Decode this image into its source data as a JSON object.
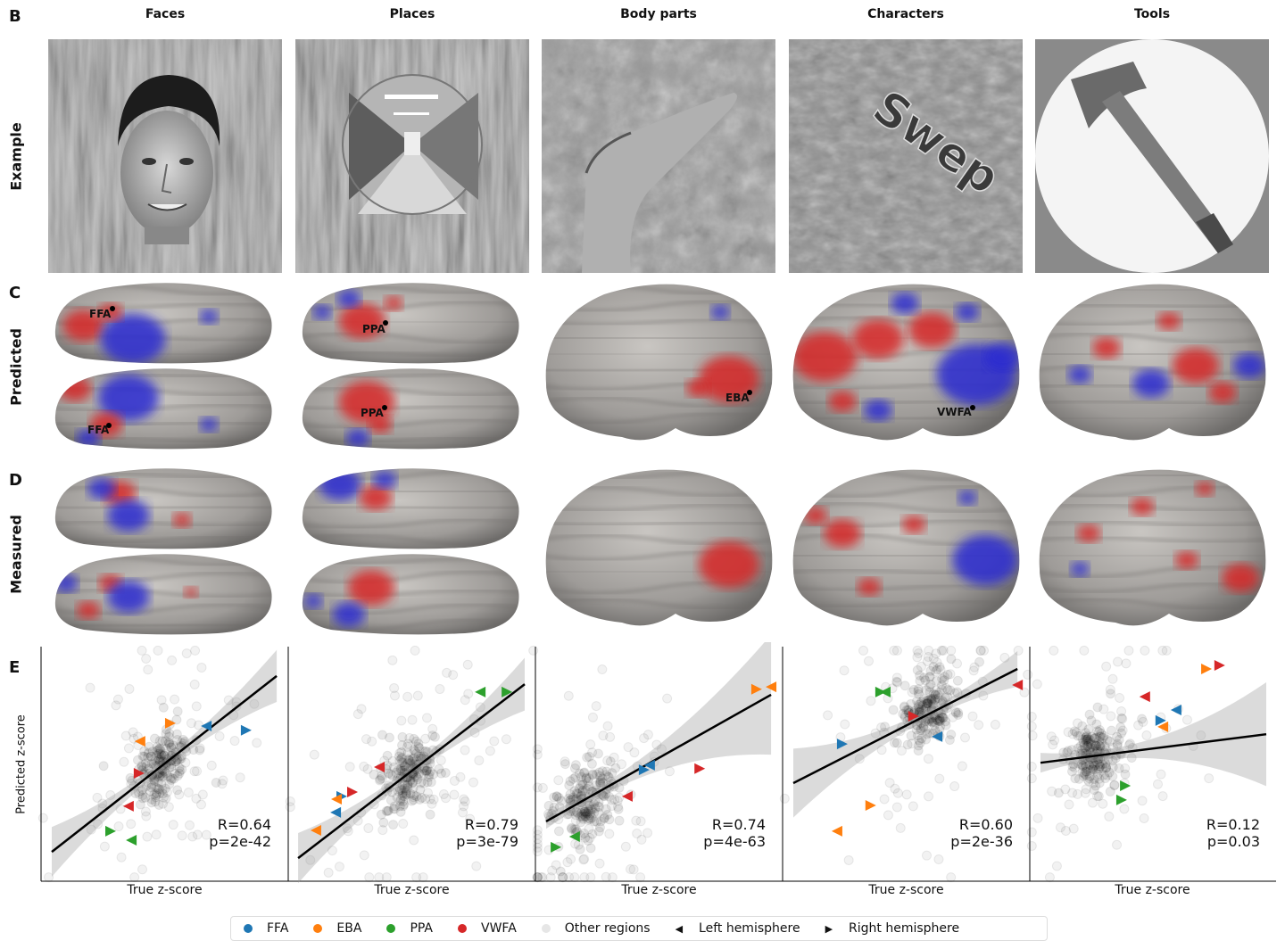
{
  "panels": {
    "B": "B",
    "C": "C",
    "D": "D",
    "E": "E"
  },
  "columns": [
    "Faces",
    "Places",
    "Body parts",
    "Characters",
    "Tools"
  ],
  "row_labels": {
    "example": "Example",
    "predicted": "Predicted",
    "measured": "Measured"
  },
  "example_image_text": {
    "characters": "Swep"
  },
  "roi_labels": {
    "faces": [
      "FFA",
      "FFA"
    ],
    "places": [
      "PPA",
      "PPA"
    ],
    "body_parts": [
      "EBA"
    ],
    "characters": [
      "VWFA"
    ]
  },
  "colors": {
    "FFA": "#1f77b4",
    "EBA": "#ff7f0e",
    "PPA": "#2ca02c",
    "VWFA": "#d62728",
    "other": "#bbbbbb",
    "positive": "#d62728",
    "negative": "#2a2ad0"
  },
  "legend": {
    "items": [
      {
        "label": "FFA",
        "marker": "circle",
        "color": "#1f77b4"
      },
      {
        "label": "EBA",
        "marker": "circle",
        "color": "#ff7f0e"
      },
      {
        "label": "PPA",
        "marker": "circle",
        "color": "#2ca02c"
      },
      {
        "label": "VWFA",
        "marker": "circle",
        "color": "#d62728"
      },
      {
        "label": "Other regions",
        "marker": "circle",
        "color": "#e6e6e6"
      },
      {
        "label": "Left hemisphere",
        "marker": "triangle-left",
        "color": "#000000"
      },
      {
        "label": "Right hemisphere",
        "marker": "triangle-right",
        "color": "#000000"
      }
    ]
  },
  "chart_data": [
    {
      "type": "scatter",
      "title": "Faces",
      "xlabel": "True z-score",
      "ylabel": "Predicted z-score",
      "grid": false,
      "ticks": false,
      "stats": [
        "R=0.64",
        "p=2e-42"
      ],
      "fit_line": [
        [
          -2.74,
          -2.25
        ],
        [
          2.72,
          2.25
        ]
      ],
      "other_regions_center": [
        -0.05,
        -0.01
      ],
      "points": [
        {
          "roi": "EBA",
          "hemi": "R",
          "x": 0.14,
          "y": 1.04
        },
        {
          "roi": "EBA",
          "hemi": "L",
          "x": -0.6,
          "y": 0.58
        },
        {
          "roi": "FFA",
          "hemi": "L",
          "x": 1.01,
          "y": 0.97
        },
        {
          "roi": "FFA",
          "hemi": "R",
          "x": 1.98,
          "y": 0.86
        },
        {
          "roi": "VWFA",
          "hemi": "R",
          "x": -0.62,
          "y": -0.24
        },
        {
          "roi": "VWFA",
          "hemi": "L",
          "x": -0.88,
          "y": -1.08
        },
        {
          "roi": "PPA",
          "hemi": "R",
          "x": -1.31,
          "y": -1.72
        },
        {
          "roi": "PPA",
          "hemi": "L",
          "x": -0.81,
          "y": -1.95
        }
      ]
    },
    {
      "type": "scatter",
      "title": "Places",
      "xlabel": "True z-score",
      "ylabel": "",
      "grid": false,
      "ticks": false,
      "stats": [
        "R=0.79",
        "p=3e-79"
      ],
      "fit_line": [
        [
          -2.76,
          -2.41
        ],
        [
          2.74,
          2.04
        ]
      ],
      "other_regions_center": [
        -0.05,
        -0.26
      ],
      "points": [
        {
          "roi": "PPA",
          "hemi": "L",
          "x": 1.66,
          "y": 1.84
        },
        {
          "roi": "PPA",
          "hemi": "R",
          "x": 2.31,
          "y": 1.84
        },
        {
          "roi": "VWFA",
          "hemi": "L",
          "x": -0.79,
          "y": -0.08
        },
        {
          "roi": "VWFA",
          "hemi": "R",
          "x": -1.44,
          "y": -0.72
        },
        {
          "roi": "FFA",
          "hemi": "R",
          "x": -1.7,
          "y": -0.83
        },
        {
          "roi": "EBA",
          "hemi": "L",
          "x": -1.83,
          "y": -0.9
        },
        {
          "roi": "FFA",
          "hemi": "L",
          "x": -1.85,
          "y": -1.24
        },
        {
          "roi": "EBA",
          "hemi": "L",
          "x": -2.33,
          "y": -1.7
        }
      ]
    },
    {
      "type": "scatter",
      "title": "Body parts",
      "xlabel": "True z-score",
      "ylabel": "",
      "grid": false,
      "ticks": false,
      "stats": [
        "R=0.74",
        "p=4e-63"
      ],
      "fit_line": [
        [
          -2.74,
          -1.47
        ],
        [
          2.72,
          1.77
        ]
      ],
      "other_regions_center": [
        -1.74,
        -0.92
      ],
      "points": [
        {
          "roi": "EBA",
          "hemi": "R",
          "x": 2.37,
          "y": 1.91
        },
        {
          "roi": "EBA",
          "hemi": "L",
          "x": 2.72,
          "y": 1.97
        },
        {
          "roi": "FFA",
          "hemi": "R",
          "x": -0.36,
          "y": -0.15
        },
        {
          "roi": "FFA",
          "hemi": "L",
          "x": -0.23,
          "y": -0.03
        },
        {
          "roi": "VWFA",
          "hemi": "L",
          "x": -0.77,
          "y": -0.83
        },
        {
          "roi": "VWFA",
          "hemi": "R",
          "x": 0.99,
          "y": -0.12
        },
        {
          "roi": "PPA",
          "hemi": "L",
          "x": -2.05,
          "y": -1.86
        },
        {
          "roi": "PPA",
          "hemi": "R",
          "x": -2.5,
          "y": -2.13
        }
      ]
    },
    {
      "type": "scatter",
      "title": "Characters",
      "xlabel": "True z-score",
      "ylabel": "",
      "grid": false,
      "ticks": false,
      "stats": [
        "R=0.60",
        "p=2e-36"
      ],
      "fit_line": [
        [
          -2.74,
          -0.49
        ],
        [
          2.7,
          2.43
        ]
      ],
      "other_regions_center": [
        0.53,
        1.4
      ],
      "points": [
        {
          "roi": "PPA",
          "hemi": "R",
          "x": -0.62,
          "y": 1.84
        },
        {
          "roi": "PPA",
          "hemi": "L",
          "x": -0.51,
          "y": 1.84
        },
        {
          "roi": "VWFA",
          "hemi": "L",
          "x": 2.7,
          "y": 2.02
        },
        {
          "roi": "VWFA",
          "hemi": "R",
          "x": 0.18,
          "y": 1.22
        },
        {
          "roi": "FFA",
          "hemi": "L",
          "x": 0.75,
          "y": 0.7
        },
        {
          "roi": "FFA",
          "hemi": "R",
          "x": -1.55,
          "y": 0.51
        },
        {
          "roi": "EBA",
          "hemi": "R",
          "x": -0.86,
          "y": -1.06
        },
        {
          "roi": "EBA",
          "hemi": "L",
          "x": -1.68,
          "y": -1.72
        }
      ]
    },
    {
      "type": "scatter",
      "title": "Tools",
      "xlabel": "True z-score",
      "ylabel": "",
      "grid": false,
      "ticks": false,
      "stats": [
        "R=0.12",
        "p=0.03"
      ],
      "fit_line": [
        [
          -2.74,
          0.03
        ],
        [
          2.74,
          0.76
        ]
      ],
      "other_regions_center": [
        -1.38,
        0.26
      ],
      "points": [
        {
          "roi": "EBA",
          "hemi": "R",
          "x": 1.29,
          "y": 2.43
        },
        {
          "roi": "VWFA",
          "hemi": "R",
          "x": 1.61,
          "y": 2.52
        },
        {
          "roi": "VWFA",
          "hemi": "L",
          "x": -0.21,
          "y": 1.72
        },
        {
          "roi": "FFA",
          "hemi": "L",
          "x": 0.55,
          "y": 1.38
        },
        {
          "roi": "FFA",
          "hemi": "R",
          "x": 0.18,
          "y": 1.11
        },
        {
          "roi": "EBA",
          "hemi": "L",
          "x": 0.23,
          "y": 0.95
        },
        {
          "roi": "PPA",
          "hemi": "R",
          "x": -0.68,
          "y": -0.56
        },
        {
          "roi": "PPA",
          "hemi": "R",
          "x": -0.77,
          "y": -0.92
        }
      ]
    }
  ]
}
